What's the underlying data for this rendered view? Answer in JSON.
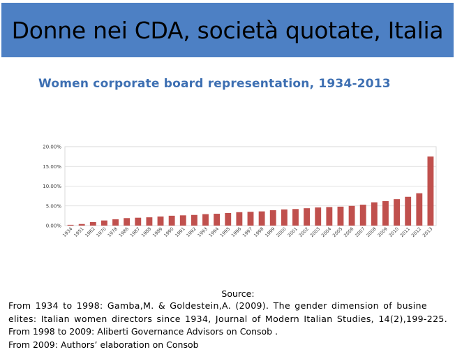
{
  "banner": {
    "title": "Donne nei CDA, società quotate, Italia"
  },
  "chart_data": {
    "type": "bar",
    "title": "Women corporate board representation, 1934-2013",
    "xlabel": "",
    "ylabel": "",
    "ylim": [
      0,
      20
    ],
    "y_ticks": [
      "0.00%",
      "5.00%",
      "10.00%",
      "15.00%",
      "20.00%"
    ],
    "y_tick_values": [
      0,
      5,
      10,
      15,
      20
    ],
    "bar_color": "#c0504d",
    "categories": [
      "1934",
      "1951",
      "1962",
      "1970",
      "1978",
      "1986",
      "1987",
      "1988",
      "1989",
      "1990",
      "1991",
      "1992",
      "1993",
      "1994",
      "1995",
      "1996",
      "1997",
      "1998",
      "1999",
      "2000",
      "2001",
      "2002",
      "2003",
      "2004",
      "2005",
      "2006",
      "2007",
      "2008",
      "2009",
      "2010",
      "2011",
      "2012",
      "2013"
    ],
    "values": [
      0.2,
      0.4,
      0.9,
      1.3,
      1.6,
      1.9,
      2.0,
      2.1,
      2.3,
      2.5,
      2.6,
      2.7,
      2.9,
      3.0,
      3.2,
      3.4,
      3.5,
      3.6,
      3.9,
      4.1,
      4.2,
      4.4,
      4.6,
      4.7,
      4.8,
      5.0,
      5.3,
      5.9,
      6.2,
      6.7,
      7.3,
      8.2,
      17.5
    ]
  },
  "source": {
    "heading": "Source:",
    "lines": [
      "From 1934 to 1998: Gamba,M. & Goldestein,A. (2009). The gender dimension of busine",
      "elites: Italian women directors since 1934, Journal of Modern Italian  Studies, 14(2),199-225.",
      "From 1998 to 2009: Aliberti Governance Advisors  on Consob .",
      "From 2009:  Authors’  elaboration on Consob"
    ]
  }
}
